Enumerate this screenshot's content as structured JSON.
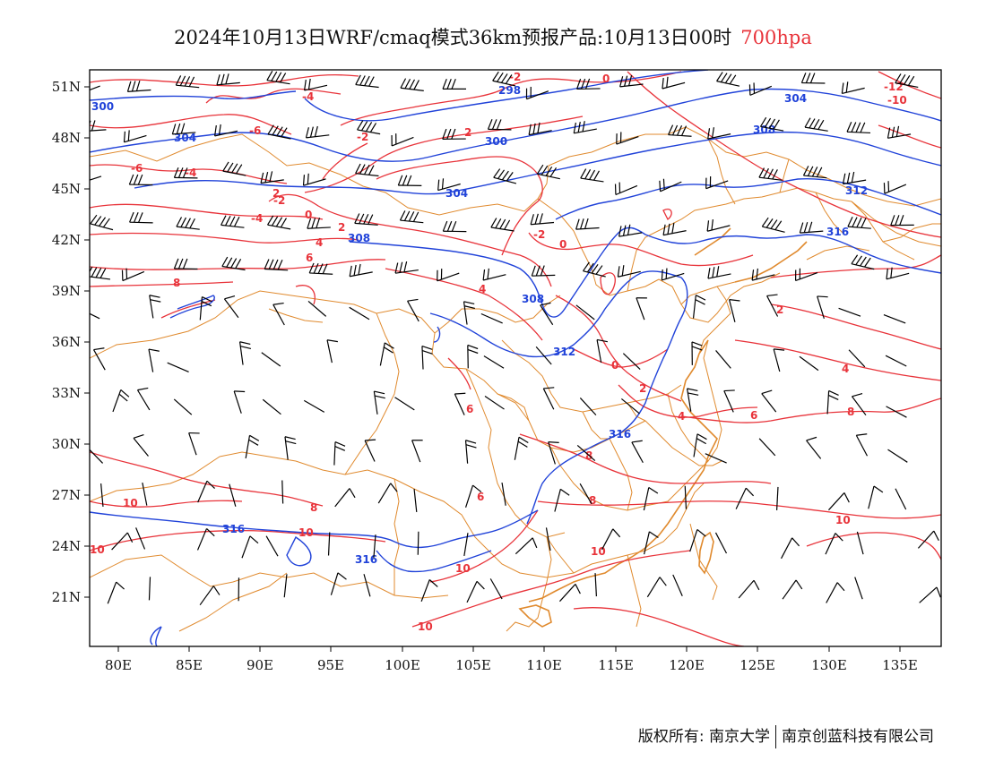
{
  "title": {
    "main": "2024年10月13日WRF/cmaq模式36km预报产品:10月13日00时",
    "level": "700hpa"
  },
  "axes": {
    "lat_labels": [
      "51N",
      "48N",
      "45N",
      "42N",
      "39N",
      "36N",
      "33N",
      "30N",
      "27N",
      "24N",
      "21N"
    ],
    "lon_labels": [
      "80E",
      "85E",
      "90E",
      "95E",
      "100E",
      "105E",
      "110E",
      "115E",
      "120E",
      "125E",
      "130E",
      "135E"
    ]
  },
  "colors": {
    "height_contour": "#2143d9",
    "temperature_contour": "#e8333a",
    "boundary": "#e08a2e",
    "wind_barb": "#000000"
  },
  "contour_labels": {
    "height": [
      "300",
      "304",
      "298",
      "300",
      "304",
      "304",
      "308",
      "308",
      "308",
      "312",
      "316",
      "312",
      "316",
      "316",
      "316"
    ],
    "temperature": [
      "-4",
      "-6",
      "-2",
      "-2",
      "-4",
      "-2",
      "0",
      "2",
      "-6",
      "-4",
      "-2",
      "0",
      "2",
      "2",
      "0",
      "-10",
      "-12",
      "4",
      "6",
      "8",
      "4",
      "2",
      "0",
      "2",
      "4",
      "6",
      "4",
      "8",
      "6",
      "8",
      "6",
      "8",
      "10",
      "8",
      "10",
      "10",
      "10",
      "10",
      "10",
      "10"
    ]
  },
  "footer": {
    "copyright": "版权所有: 南京大学",
    "company": "南京创蓝科技有限公司"
  }
}
